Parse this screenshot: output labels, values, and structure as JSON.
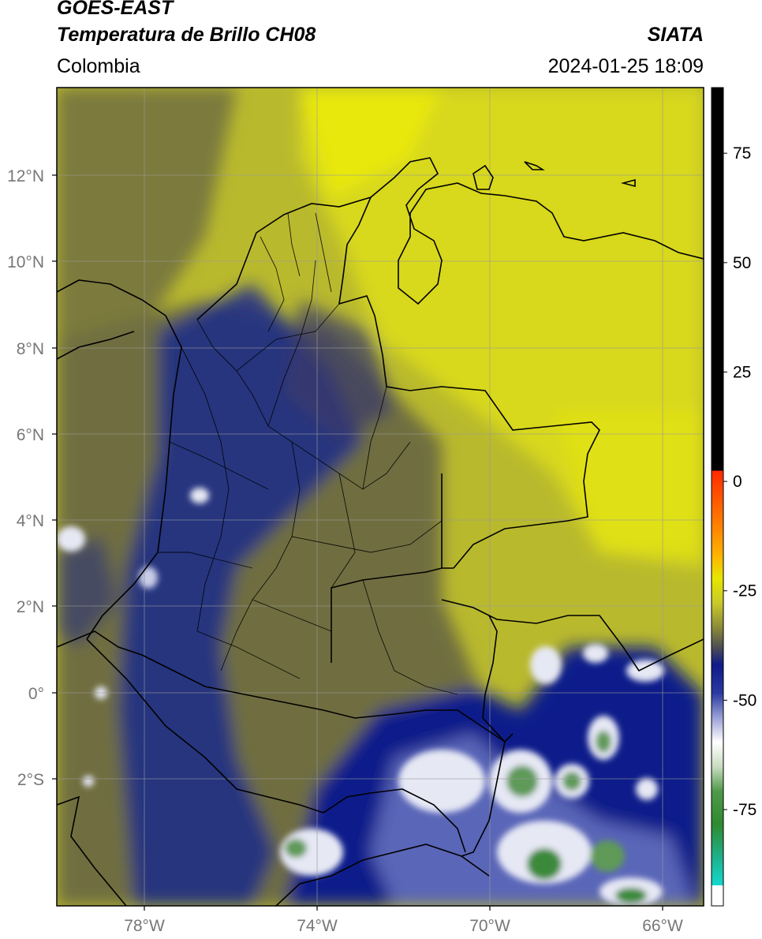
{
  "header": {
    "satellite": "GOES-EAST",
    "product": "Temperatura de Brillo CH08",
    "region": "Colombia",
    "agency": "SIATA",
    "datetime": "2024-01-25 18:09"
  },
  "map": {
    "lat_ticks": [
      "12°N",
      "10°N",
      "8°N",
      "6°N",
      "4°N",
      "2°N",
      "0°",
      "2°S"
    ],
    "lon_ticks": [
      "78°W",
      "74°W",
      "70°W",
      "66°W"
    ]
  },
  "colorbar": {
    "tick_labels": [
      "75",
      "50",
      "25",
      "0",
      "-25",
      "-50",
      "-75"
    ],
    "tick_values": [
      75,
      50,
      25,
      0,
      -25,
      -50,
      -75
    ],
    "range": [
      -97,
      90
    ],
    "colors": {
      "warm": "#000000",
      "red": "#ff2a00",
      "orange": "#ff9a00",
      "yellow": "#e6e600",
      "olive": "#7b7a35",
      "navy": "#0e1a86",
      "white": "#ffffff",
      "green": "#2f8a2f",
      "cyan": "#14d9cf"
    }
  },
  "colors": {
    "background_yellow": "#c8c82a",
    "cold_cloud": "#1c2a8a",
    "border": "#000000",
    "grid": "#9a9a9a"
  }
}
